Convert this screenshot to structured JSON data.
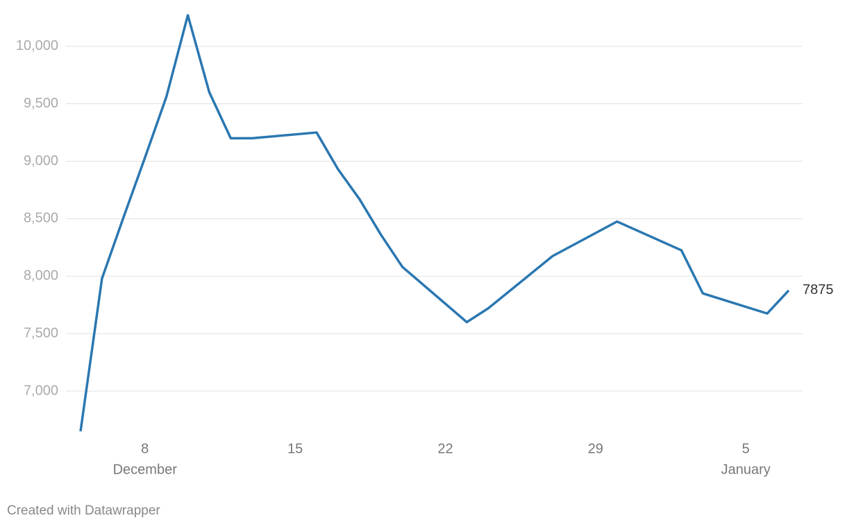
{
  "chart_data": {
    "type": "line",
    "x": [
      "December 5",
      "December 6",
      "December 7",
      "December 8",
      "December 9",
      "December 10",
      "December 11",
      "December 12",
      "December 13",
      "December 16",
      "December 17",
      "December 18",
      "December 19",
      "December 20",
      "December 23",
      "December 24",
      "December 27",
      "December 30",
      "January 2",
      "January 3",
      "January 6",
      "January 7"
    ],
    "series": [
      {
        "color": "#2a77b1",
        "values": [
          6650,
          7980,
          8510,
          9030,
          9560,
          10270,
          9600,
          9200,
          9200,
          9250,
          8930,
          8670,
          8360,
          8080,
          7600,
          7720,
          8175,
          8475,
          8225,
          7850,
          7675,
          7875
        ]
      }
    ],
    "label_last": true,
    "ylim": [
      6650,
      10270
    ],
    "yticks": [
      {
        "value": 7000,
        "label": "7,000"
      },
      {
        "value": 7500,
        "label": "7,500"
      },
      {
        "value": 8000,
        "label": "8,000"
      },
      {
        "value": 8500,
        "label": "8,500"
      },
      {
        "value": 9000,
        "label": "9,000"
      },
      {
        "value": 9500,
        "label": "9,500"
      },
      {
        "value": 10000,
        "label": "10,000"
      }
    ],
    "xticks": [
      {
        "value": "December 8",
        "label": "8",
        "month": "December"
      },
      {
        "value": "December 15",
        "label": "15"
      },
      {
        "value": "December 22",
        "label": "22"
      },
      {
        "value": "December 29",
        "label": "29"
      },
      {
        "value": "January 5",
        "label": "5",
        "month": "January"
      }
    ],
    "grid": true,
    "footer": "Created with Datawrapper"
  }
}
